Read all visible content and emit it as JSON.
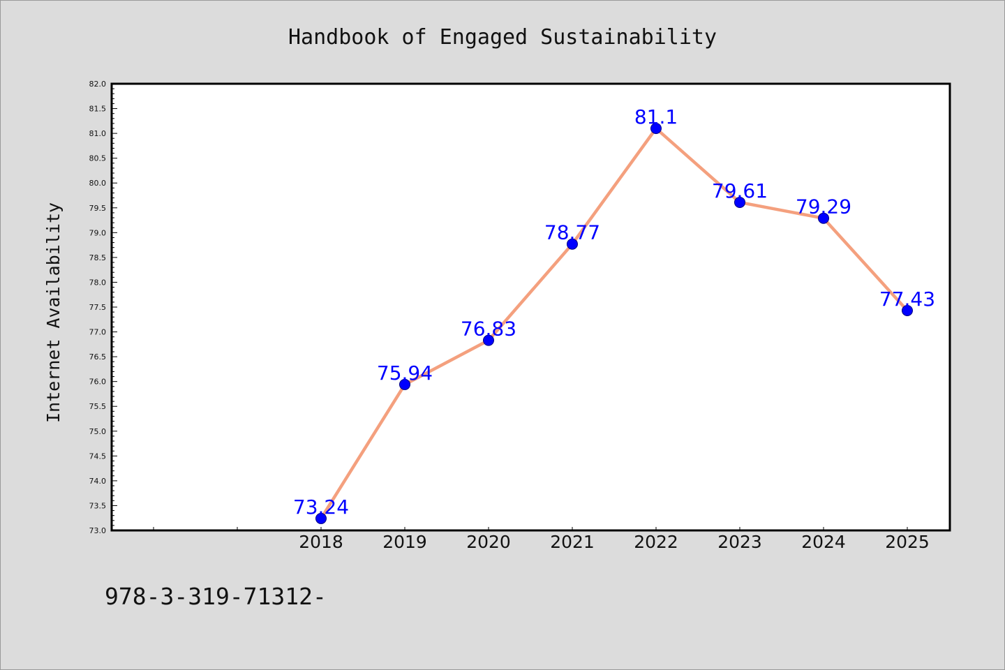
{
  "chart_data": {
    "type": "line",
    "title": "Handbook of Engaged Sustainability",
    "xlabel": "",
    "ylabel": "Internet Availability",
    "categories": [
      "",
      "",
      "2018",
      "2019",
      "2020",
      "2021",
      "2022",
      "2023",
      "2024",
      "2025"
    ],
    "series": [
      {
        "values": [
          null,
          null,
          73.24,
          75.94,
          76.83,
          78.77,
          81.1,
          79.61,
          79.29,
          77.43
        ],
        "labels": [
          "",
          "",
          "73.24",
          "75.94",
          "76.83",
          "78.77",
          "81.1",
          "79.61",
          "79.29",
          "77.43"
        ]
      }
    ],
    "ylim": [
      73.0,
      82.0
    ],
    "yticks": [
      "73.0",
      "73.5",
      "74.0",
      "74.5",
      "75.0",
      "75.5",
      "76.0",
      "76.5",
      "77.0",
      "77.5",
      "78.0",
      "78.5",
      "79.0",
      "79.5",
      "80.0",
      "80.5",
      "81.0",
      "81.5",
      "82.0"
    ],
    "grid": false,
    "legend": "none",
    "colors": {
      "line": "#f4a07e",
      "marker": "#0000ff",
      "marker_edge": "#000080",
      "data_label": "#0000ff",
      "background": "#dcdcdc",
      "plot_background": "#ffffff"
    }
  },
  "footer": {
    "text": "978-3-319-71312-"
  }
}
